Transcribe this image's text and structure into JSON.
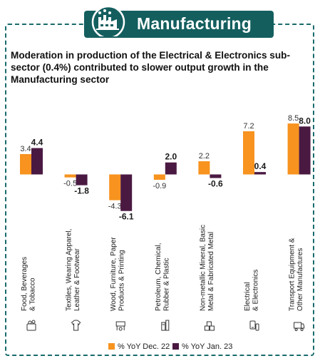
{
  "header": {
    "title": "Manufacturing",
    "icon": "factory-icon"
  },
  "headline": "Moderation in production of the Electrical & Electronics sub-sector (0.4%) contributed to slower output growth in the Manufacturing sector",
  "colors": {
    "dec22": "#f7931e",
    "jan23": "#4a1942",
    "accent": "#145e5e"
  },
  "chart_data": {
    "type": "bar",
    "title": "",
    "xlabel": "",
    "ylabel": "",
    "categories": [
      "Food, Beverages & Tobacco",
      "Textiles, Wearing Apparel, Leather & Footwear",
      "Wood, Furniture, Paper Products & Printing",
      "Petroleum, Chemical, Rubber & Plastic",
      "Non-metallic Mineral, Basic Metal & Fabricated Metal",
      "Electrical & Electronics",
      "Transport Equipment & Other Manufactures"
    ],
    "category_lines": [
      [
        "Food, Beverages",
        "& Tobacco"
      ],
      [
        "Textiles, Wearing Apparel,",
        "Leather & Footwear"
      ],
      [
        "Wood, Furniture, Paper",
        "Products & Printing"
      ],
      [
        "Petroleum, Chemical,",
        "Rubber & Plastic"
      ],
      [
        "Non-metallic Mineral, Basic",
        "Metal & Fabricated Metal"
      ],
      [
        "Electrical",
        "& Electronics"
      ],
      [
        "Transport Equipment &",
        "Other Manufactures"
      ]
    ],
    "category_icons": [
      "food-icon",
      "textile-icon",
      "furniture-icon",
      "chemical-icon",
      "metal-icon",
      "electronics-icon",
      "transport-icon"
    ],
    "series": [
      {
        "name": "% YoY Dec. 22",
        "values": [
          3.4,
          -0.5,
          -4.3,
          -0.9,
          2.2,
          7.2,
          8.5
        ],
        "labels": [
          "3.4",
          "-0.5",
          "-4.3",
          "-0.9",
          "2.2",
          "7.2",
          "8.5"
        ]
      },
      {
        "name": "% YoY Jan. 23",
        "values": [
          4.4,
          -1.8,
          -6.1,
          2.0,
          -0.6,
          0.4,
          8.0
        ],
        "labels": [
          "4.4",
          "-1.8",
          "-6.1",
          "2.0",
          "-0.6",
          "0.4",
          "8.0"
        ]
      }
    ],
    "ylim": [
      -6.1,
      8.5
    ],
    "grid": false,
    "legend_position": "bottom-right"
  }
}
